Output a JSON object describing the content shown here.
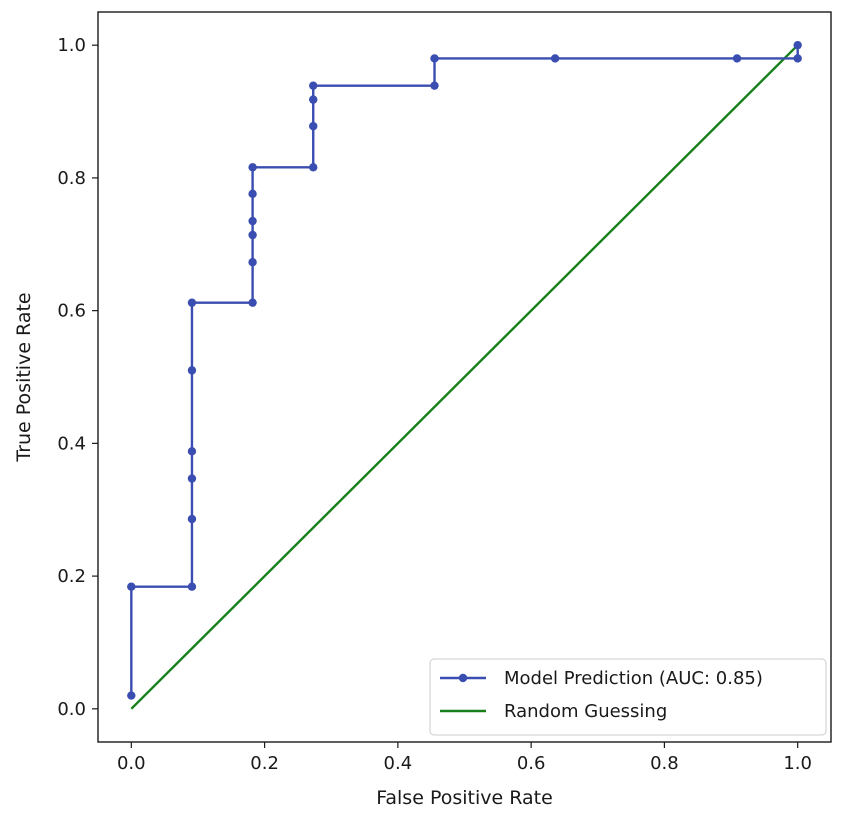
{
  "chart_data": {
    "type": "line",
    "title": "",
    "xlabel": "False Positive Rate",
    "ylabel": "True Positive Rate",
    "xlim": [
      -0.05,
      1.05
    ],
    "ylim": [
      -0.05,
      1.05
    ],
    "xticks": [
      "0.0",
      "0.2",
      "0.4",
      "0.6",
      "0.8",
      "1.0"
    ],
    "yticks": [
      "0.0",
      "0.2",
      "0.4",
      "0.6",
      "0.8",
      "1.0"
    ],
    "grid": false,
    "legend_position": "lower-right",
    "series": [
      {
        "name": "Model Prediction (AUC: 0.85)",
        "color": "#3a4db0",
        "marker": "dot",
        "points": [
          [
            0.0,
            0.02
          ],
          [
            0.0,
            0.184
          ],
          [
            0.091,
            0.184
          ],
          [
            0.091,
            0.286
          ],
          [
            0.091,
            0.347
          ],
          [
            0.091,
            0.388
          ],
          [
            0.091,
            0.51
          ],
          [
            0.091,
            0.612
          ],
          [
            0.182,
            0.612
          ],
          [
            0.182,
            0.673
          ],
          [
            0.182,
            0.714
          ],
          [
            0.182,
            0.735
          ],
          [
            0.182,
            0.776
          ],
          [
            0.182,
            0.816
          ],
          [
            0.273,
            0.816
          ],
          [
            0.273,
            0.878
          ],
          [
            0.273,
            0.918
          ],
          [
            0.273,
            0.939
          ],
          [
            0.455,
            0.939
          ],
          [
            0.455,
            0.98
          ],
          [
            0.636,
            0.98
          ],
          [
            0.909,
            0.98
          ],
          [
            1.0,
            0.98
          ],
          [
            1.0,
            1.0
          ]
        ]
      },
      {
        "name": "Random Guessing",
        "color": "#17801a",
        "marker": "none",
        "points": [
          [
            0.0,
            0.0
          ],
          [
            1.0,
            1.0
          ]
        ]
      }
    ]
  }
}
